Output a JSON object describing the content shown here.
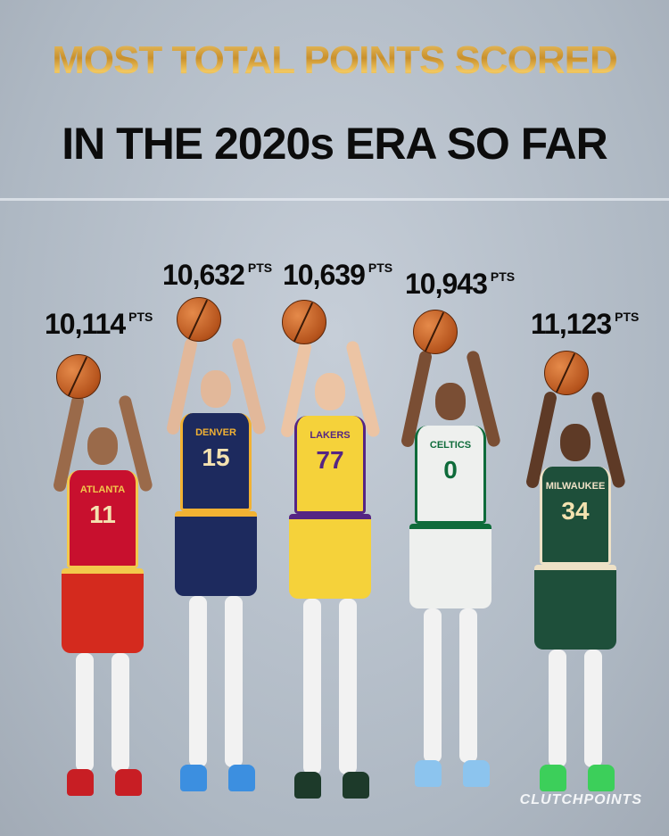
{
  "title": {
    "line1": "MOST TOTAL POINTS SCORED",
    "line2": "IN THE 2020s ERA SO FAR"
  },
  "unit": "PTS",
  "players": [
    {
      "points": "10,114",
      "team": "ATLANTA",
      "number": "11",
      "jersey": "#c8102e",
      "shorts": "#d42a1e",
      "trim": "#f2c94c",
      "shoes": "#c81e24",
      "skin": "#9a6a4a"
    },
    {
      "points": "10,632",
      "team": "DENVER",
      "number": "15",
      "jersey": "#1d2a5e",
      "shorts": "#1d2a5e",
      "trim": "#f2b233",
      "shoes": "#3c8fe0",
      "skin": "#e2b89a"
    },
    {
      "points": "10,639",
      "team": "LAKERS",
      "number": "77",
      "jersey": "#f5d23a",
      "shorts": "#f5d23a",
      "trim": "#552583",
      "shoes": "#1d3a2a",
      "skin": "#ecc4a4"
    },
    {
      "points": "10,943",
      "team": "CELTICS",
      "number": "0",
      "jersey": "#eef0ee",
      "shorts": "#eef0ee",
      "trim": "#0e6b3a",
      "shoes": "#8cc4ee",
      "skin": "#7a4e34"
    },
    {
      "points": "11,123",
      "team": "MILWAUKEE",
      "number": "34",
      "jersey": "#1e4f3a",
      "shorts": "#1e4f3a",
      "trim": "#eee1c6",
      "shoes": "#3ccf5a",
      "skin": "#5e3a26"
    }
  ],
  "watermark": "CLUTCHPOINTS"
}
